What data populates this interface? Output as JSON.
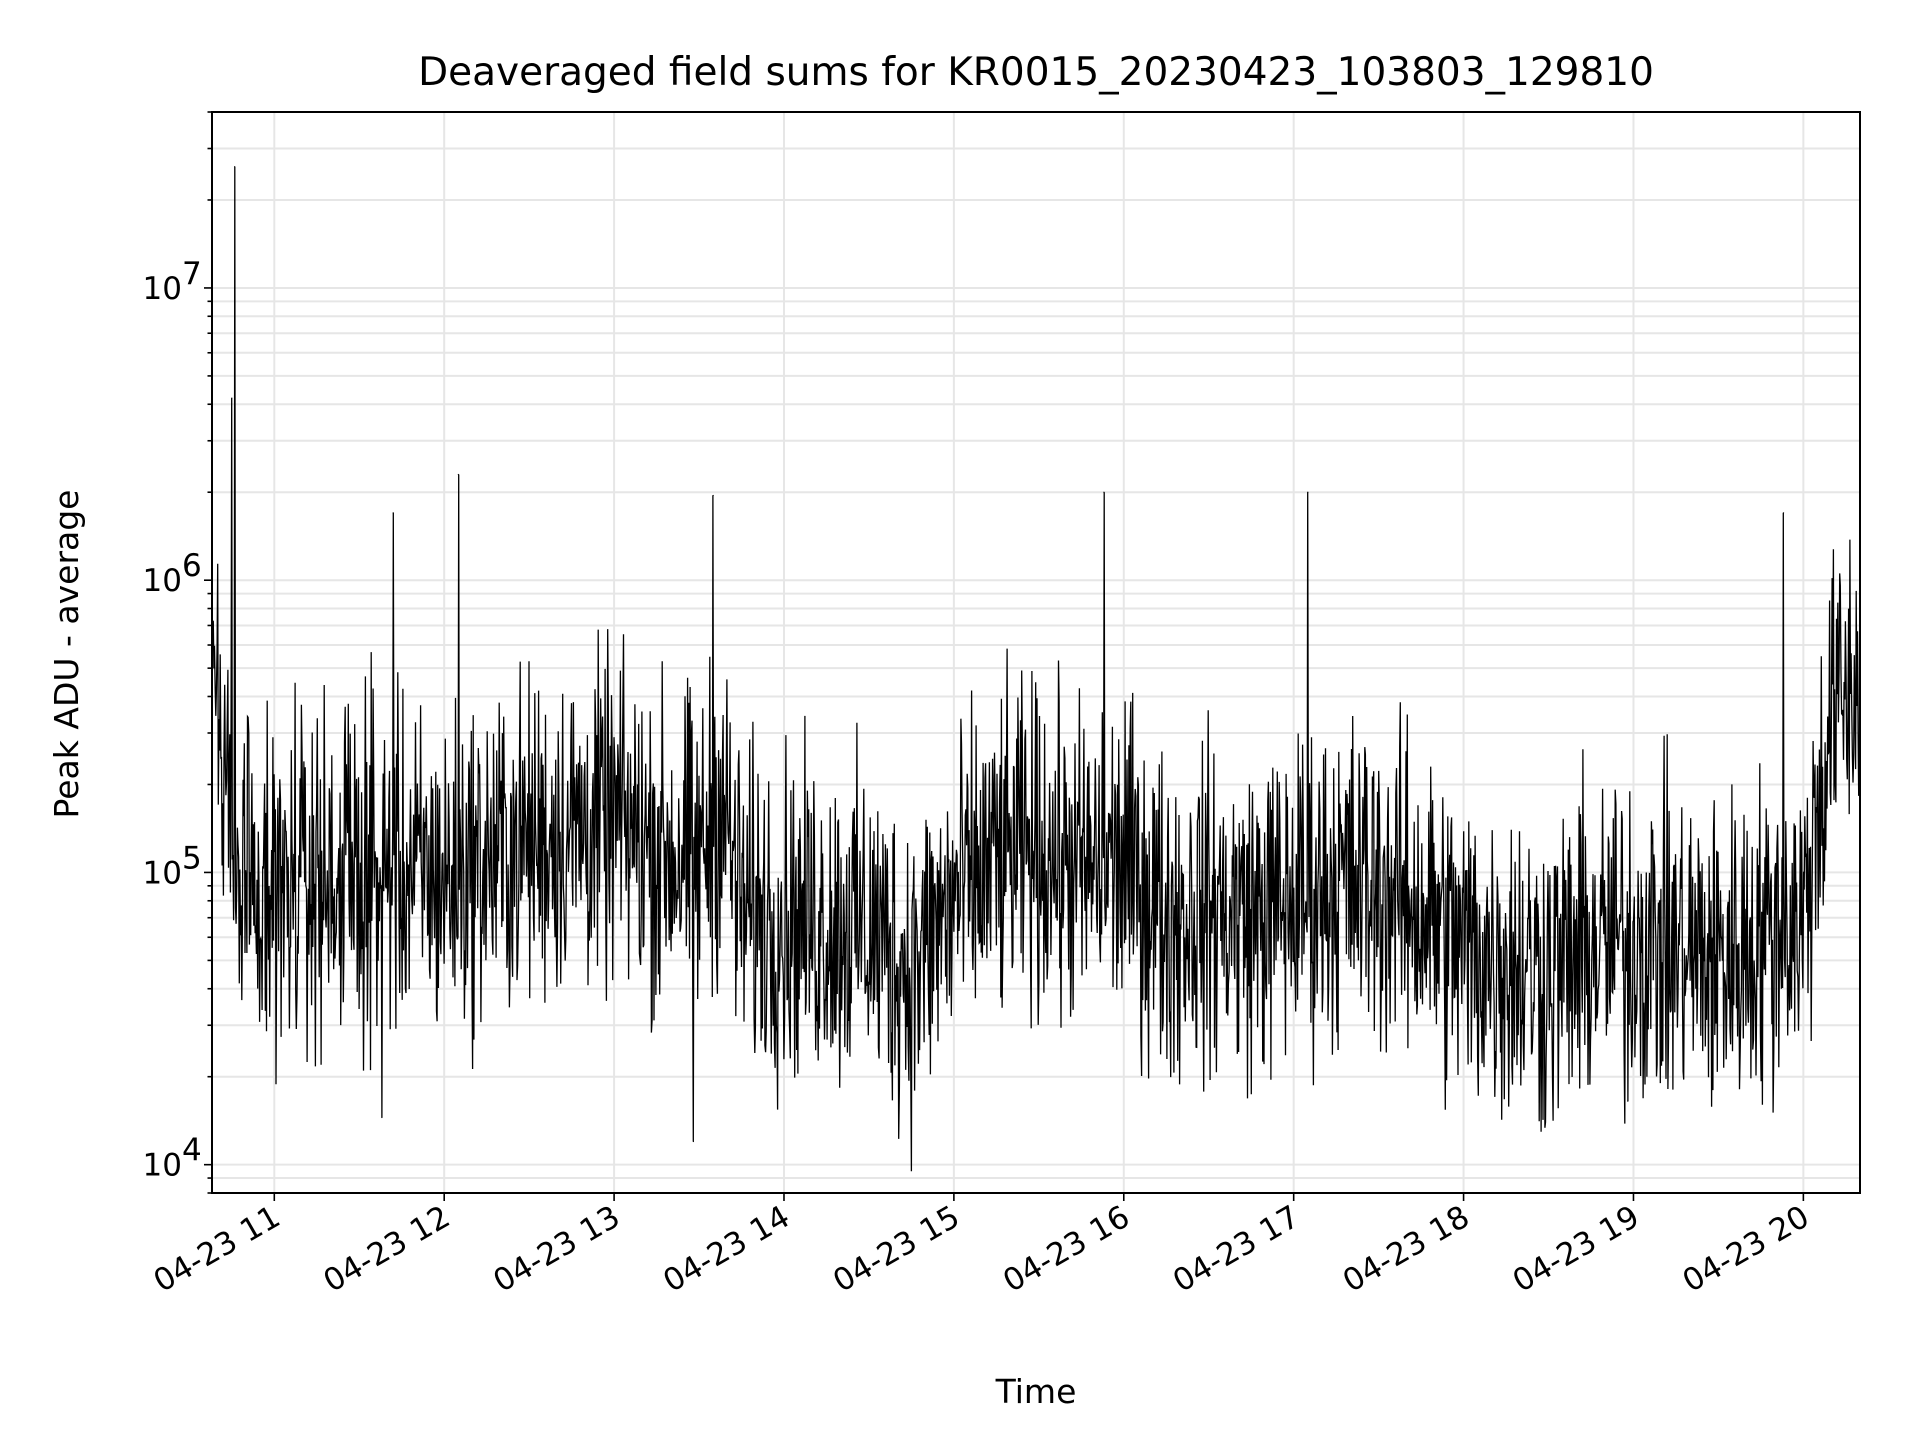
{
  "chart_data": {
    "type": "line",
    "title": "Deaveraged field sums for KR0015_20230423_103803_129810",
    "xlabel": "Time",
    "ylabel": "Peak ADU - average",
    "y_scale": "log",
    "ylim": [
      8000,
      40000000
    ],
    "xlim": [
      "04-23 10:38",
      "04-23 20:20"
    ],
    "grid": true,
    "legend": "none",
    "line_color": "#000000",
    "grid_color": "#e6e6e6",
    "x_ticks": [
      "04-23 11",
      "04-23 12",
      "04-23 13",
      "04-23 14",
      "04-23 15",
      "04-23 16",
      "04-23 17",
      "04-23 18",
      "04-23 19",
      "04-23 20"
    ],
    "y_ticks": [
      {
        "base": "10",
        "exp": "4"
      },
      {
        "base": "10",
        "exp": "5"
      },
      {
        "base": "10",
        "exp": "6"
      },
      {
        "base": "10",
        "exp": "7"
      }
    ],
    "series": [
      {
        "time": [
          "10:38",
          "10:45",
          "11:00",
          "11:15",
          "11:30",
          "11:45",
          "12:00",
          "12:15",
          "12:30",
          "12:45",
          "13:00",
          "13:15",
          "13:30",
          "13:38",
          "13:45",
          "14:00",
          "14:30",
          "14:45",
          "15:00",
          "15:15",
          "15:30",
          "15:45",
          "16:00",
          "16:15",
          "16:30",
          "16:45",
          "17:00",
          "17:15",
          "17:30",
          "17:45",
          "18:00",
          "18:15",
          "18:30",
          "18:45",
          "19:00",
          "19:15",
          "19:30",
          "19:45",
          "20:00",
          "20:10",
          "20:20"
        ],
        "values": [
          700000,
          130000,
          90000,
          95000,
          100000,
          100000,
          95000,
          110000,
          130000,
          140000,
          150000,
          120000,
          110000,
          180000,
          75000,
          70000,
          65000,
          45000,
          80000,
          110000,
          120000,
          100000,
          110000,
          70000,
          75000,
          70000,
          80000,
          95000,
          90000,
          75000,
          55000,
          50000,
          45000,
          55000,
          60000,
          55000,
          50000,
          60000,
          70000,
          350000,
          450000
        ],
        "spikes": [
          {
            "time": "10:46",
            "value": 26000000
          },
          {
            "time": "10:45",
            "value": 4200000
          },
          {
            "time": "11:42",
            "value": 1700000
          },
          {
            "time": "12:05",
            "value": 2300000
          },
          {
            "time": "13:35",
            "value": 1950000
          },
          {
            "time": "15:53",
            "value": 2000000
          },
          {
            "time": "17:05",
            "value": 2000000
          },
          {
            "time": "19:53",
            "value": 1700000
          },
          {
            "time": "20:20",
            "value": 2600000
          },
          {
            "time": "13:28",
            "value": 12000
          },
          {
            "time": "11:38",
            "value": 14500
          },
          {
            "time": "18:58",
            "value": 16500
          }
        ]
      }
    ]
  }
}
